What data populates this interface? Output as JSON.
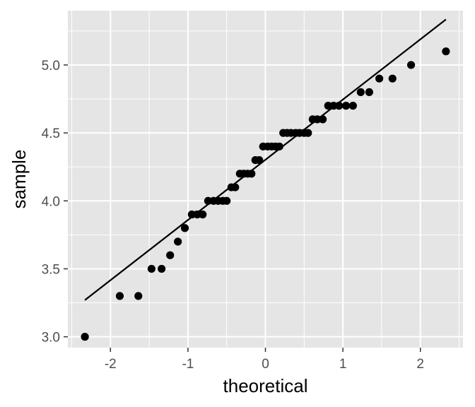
{
  "chart_data": {
    "type": "scatter",
    "title": "",
    "xlabel": "theoretical",
    "ylabel": "sample",
    "xlim": [
      -2.55,
      2.55
    ],
    "ylim": [
      2.92,
      5.4
    ],
    "x_ticks": [
      -2,
      -1,
      0,
      1,
      2
    ],
    "x_tick_labels": [
      "-2",
      "-1",
      "0",
      "1",
      "2"
    ],
    "y_ticks": [
      3.0,
      3.5,
      4.0,
      4.5,
      5.0
    ],
    "y_tick_labels": [
      "3.0",
      "3.5",
      "4.0",
      "4.5",
      "5.0"
    ],
    "grid": true,
    "panel_background": "#e5e5e5",
    "grid_color": "#ffffff",
    "point_color": "#000000",
    "line_color": "#000000",
    "points": [
      {
        "x": -2.33,
        "y": 3.0
      },
      {
        "x": -1.88,
        "y": 3.3
      },
      {
        "x": -1.64,
        "y": 3.3
      },
      {
        "x": -1.47,
        "y": 3.5
      },
      {
        "x": -1.34,
        "y": 3.5
      },
      {
        "x": -1.23,
        "y": 3.6
      },
      {
        "x": -1.13,
        "y": 3.7
      },
      {
        "x": -1.04,
        "y": 3.8
      },
      {
        "x": -0.95,
        "y": 3.9
      },
      {
        "x": -0.88,
        "y": 3.9
      },
      {
        "x": -0.81,
        "y": 3.9
      },
      {
        "x": -0.74,
        "y": 4.0
      },
      {
        "x": -0.67,
        "y": 4.0
      },
      {
        "x": -0.61,
        "y": 4.0
      },
      {
        "x": -0.55,
        "y": 4.0
      },
      {
        "x": -0.5,
        "y": 4.0
      },
      {
        "x": -0.44,
        "y": 4.1
      },
      {
        "x": -0.39,
        "y": 4.1
      },
      {
        "x": -0.33,
        "y": 4.2
      },
      {
        "x": -0.28,
        "y": 4.2
      },
      {
        "x": -0.23,
        "y": 4.2
      },
      {
        "x": -0.18,
        "y": 4.2
      },
      {
        "x": -0.13,
        "y": 4.3
      },
      {
        "x": -0.08,
        "y": 4.3
      },
      {
        "x": -0.03,
        "y": 4.4
      },
      {
        "x": 0.03,
        "y": 4.4
      },
      {
        "x": 0.08,
        "y": 4.4
      },
      {
        "x": 0.13,
        "y": 4.4
      },
      {
        "x": 0.18,
        "y": 4.4
      },
      {
        "x": 0.23,
        "y": 4.5
      },
      {
        "x": 0.28,
        "y": 4.5
      },
      {
        "x": 0.33,
        "y": 4.5
      },
      {
        "x": 0.39,
        "y": 4.5
      },
      {
        "x": 0.44,
        "y": 4.5
      },
      {
        "x": 0.5,
        "y": 4.5
      },
      {
        "x": 0.55,
        "y": 4.5
      },
      {
        "x": 0.61,
        "y": 4.6
      },
      {
        "x": 0.67,
        "y": 4.6
      },
      {
        "x": 0.74,
        "y": 4.6
      },
      {
        "x": 0.81,
        "y": 4.7
      },
      {
        "x": 0.88,
        "y": 4.7
      },
      {
        "x": 0.95,
        "y": 4.7
      },
      {
        "x": 1.04,
        "y": 4.7
      },
      {
        "x": 1.13,
        "y": 4.7
      },
      {
        "x": 1.23,
        "y": 4.8
      },
      {
        "x": 1.34,
        "y": 4.8
      },
      {
        "x": 1.47,
        "y": 4.9
      },
      {
        "x": 1.64,
        "y": 4.9
      },
      {
        "x": 1.88,
        "y": 5.0
      },
      {
        "x": 2.33,
        "y": 5.1
      }
    ],
    "reference_line": {
      "x1": -2.33,
      "y1": 3.27,
      "x2": 2.33,
      "y2": 5.335
    }
  }
}
